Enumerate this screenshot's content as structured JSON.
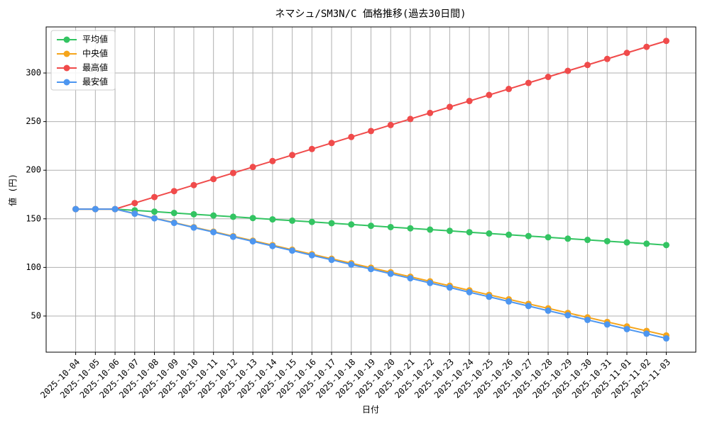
{
  "chart_data": {
    "type": "line",
    "title": "ネマシュ/SM3N/C 価格推移(過去30日間)",
    "x_label": "日付",
    "y_label": "値 (円)",
    "categories": [
      "2025-10-04",
      "2025-10-05",
      "2025-10-06",
      "2025-10-07",
      "2025-10-08",
      "2025-10-09",
      "2025-10-10",
      "2025-10-11",
      "2025-10-12",
      "2025-10-13",
      "2025-10-14",
      "2025-10-15",
      "2025-10-16",
      "2025-10-17",
      "2025-10-18",
      "2025-10-19",
      "2025-10-20",
      "2025-10-21",
      "2025-10-22",
      "2025-10-23",
      "2025-10-24",
      "2025-10-25",
      "2025-10-26",
      "2025-10-27",
      "2025-10-28",
      "2025-10-29",
      "2025-10-30",
      "2025-10-31",
      "2025-11-01",
      "2025-11-02",
      "2025-11-03"
    ],
    "series": [
      {
        "name": "平均値",
        "color": "#33c462",
        "values": [
          160,
          160,
          160,
          158.7,
          157.4,
          156.0,
          154.7,
          153.4,
          152.1,
          150.8,
          149.4,
          148.1,
          146.8,
          145.5,
          144.2,
          142.8,
          141.5,
          140.2,
          138.9,
          137.6,
          136.2,
          134.9,
          133.6,
          132.3,
          131.0,
          129.6,
          128.3,
          127.0,
          125.7,
          124.4,
          123.0
        ]
      },
      {
        "name": "中央値",
        "color": "#f5a51c",
        "values": [
          160,
          160,
          160,
          155.4,
          150.7,
          146.1,
          141.4,
          136.8,
          132.1,
          127.5,
          122.9,
          118.2,
          113.6,
          108.9,
          104.3,
          99.7,
          95.0,
          90.4,
          85.7,
          81.1,
          76.4,
          71.8,
          67.2,
          62.5,
          57.9,
          53.2,
          48.6,
          43.9,
          39.3,
          34.7,
          30.0
        ]
      },
      {
        "name": "最高値",
        "color": "#f04b4b",
        "values": [
          160,
          160,
          160,
          166.2,
          172.4,
          178.5,
          184.7,
          190.9,
          197.1,
          203.3,
          209.4,
          215.6,
          221.8,
          228.0,
          234.2,
          240.3,
          246.5,
          252.7,
          258.9,
          265.1,
          271.2,
          277.4,
          283.6,
          289.8,
          296.0,
          302.2,
          308.3,
          314.5,
          320.7,
          326.9,
          333.0
        ]
      },
      {
        "name": "最安値",
        "color": "#4d96f0",
        "values": [
          160,
          160,
          160,
          155.3,
          150.5,
          145.8,
          141.0,
          136.3,
          131.5,
          126.8,
          122.0,
          117.3,
          112.5,
          107.8,
          103.0,
          98.3,
          93.5,
          88.8,
          84.0,
          79.3,
          74.5,
          69.8,
          65.0,
          60.3,
          55.5,
          50.8,
          46.0,
          41.3,
          36.5,
          31.8,
          27.0
        ]
      }
    ],
    "ylim": [
      12.8,
      347.4
    ],
    "yticks": [
      50,
      100,
      150,
      200,
      250,
      300
    ],
    "grid": true,
    "legend": "upper-left"
  }
}
